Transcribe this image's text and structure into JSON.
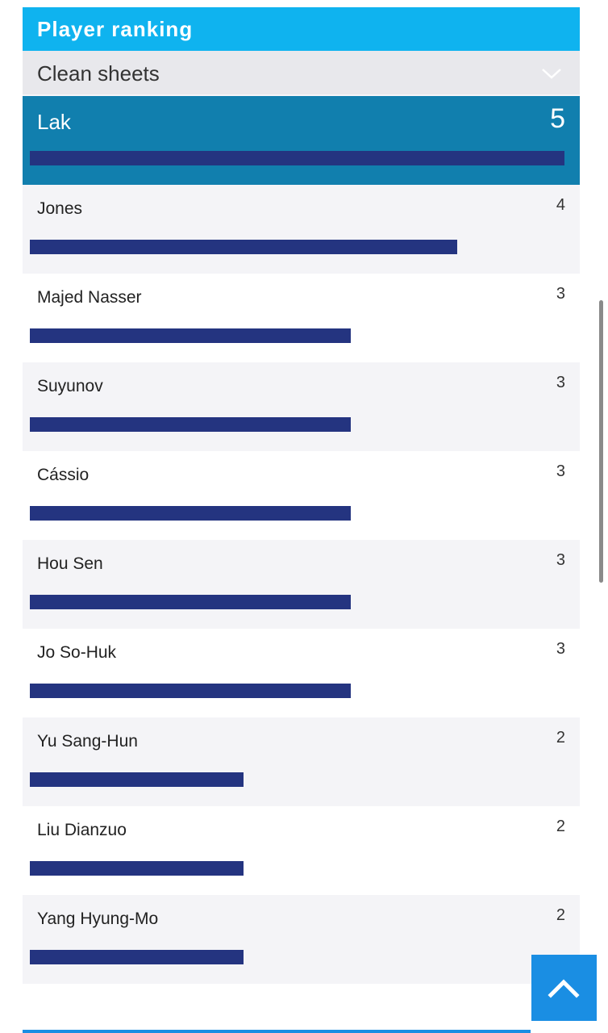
{
  "panel": {
    "title": "Player ranking",
    "selector_value": "Clean sheets",
    "selector_icon": "chevron-down-icon"
  },
  "max_value": 5,
  "rows": [
    {
      "name": "Lak",
      "value": 5
    },
    {
      "name": "Jones",
      "value": 4
    },
    {
      "name": "Majed Nasser",
      "value": 3
    },
    {
      "name": "Suyunov",
      "value": 3
    },
    {
      "name": "Cássio",
      "value": 3
    },
    {
      "name": "Hou Sen",
      "value": 3
    },
    {
      "name": "Jo So-Huk",
      "value": 3
    },
    {
      "name": "Yu Sang-Hun",
      "value": 2
    },
    {
      "name": "Liu Dianzuo",
      "value": 2
    },
    {
      "name": "Yang Hyung-Mo",
      "value": 2
    }
  ],
  "colors": {
    "header": "#0fb3ef",
    "top_row": "#117fae",
    "bar": "#243480",
    "back_to_top": "#1a8ee3"
  },
  "back_to_top_icon": "chevron-up-icon"
}
